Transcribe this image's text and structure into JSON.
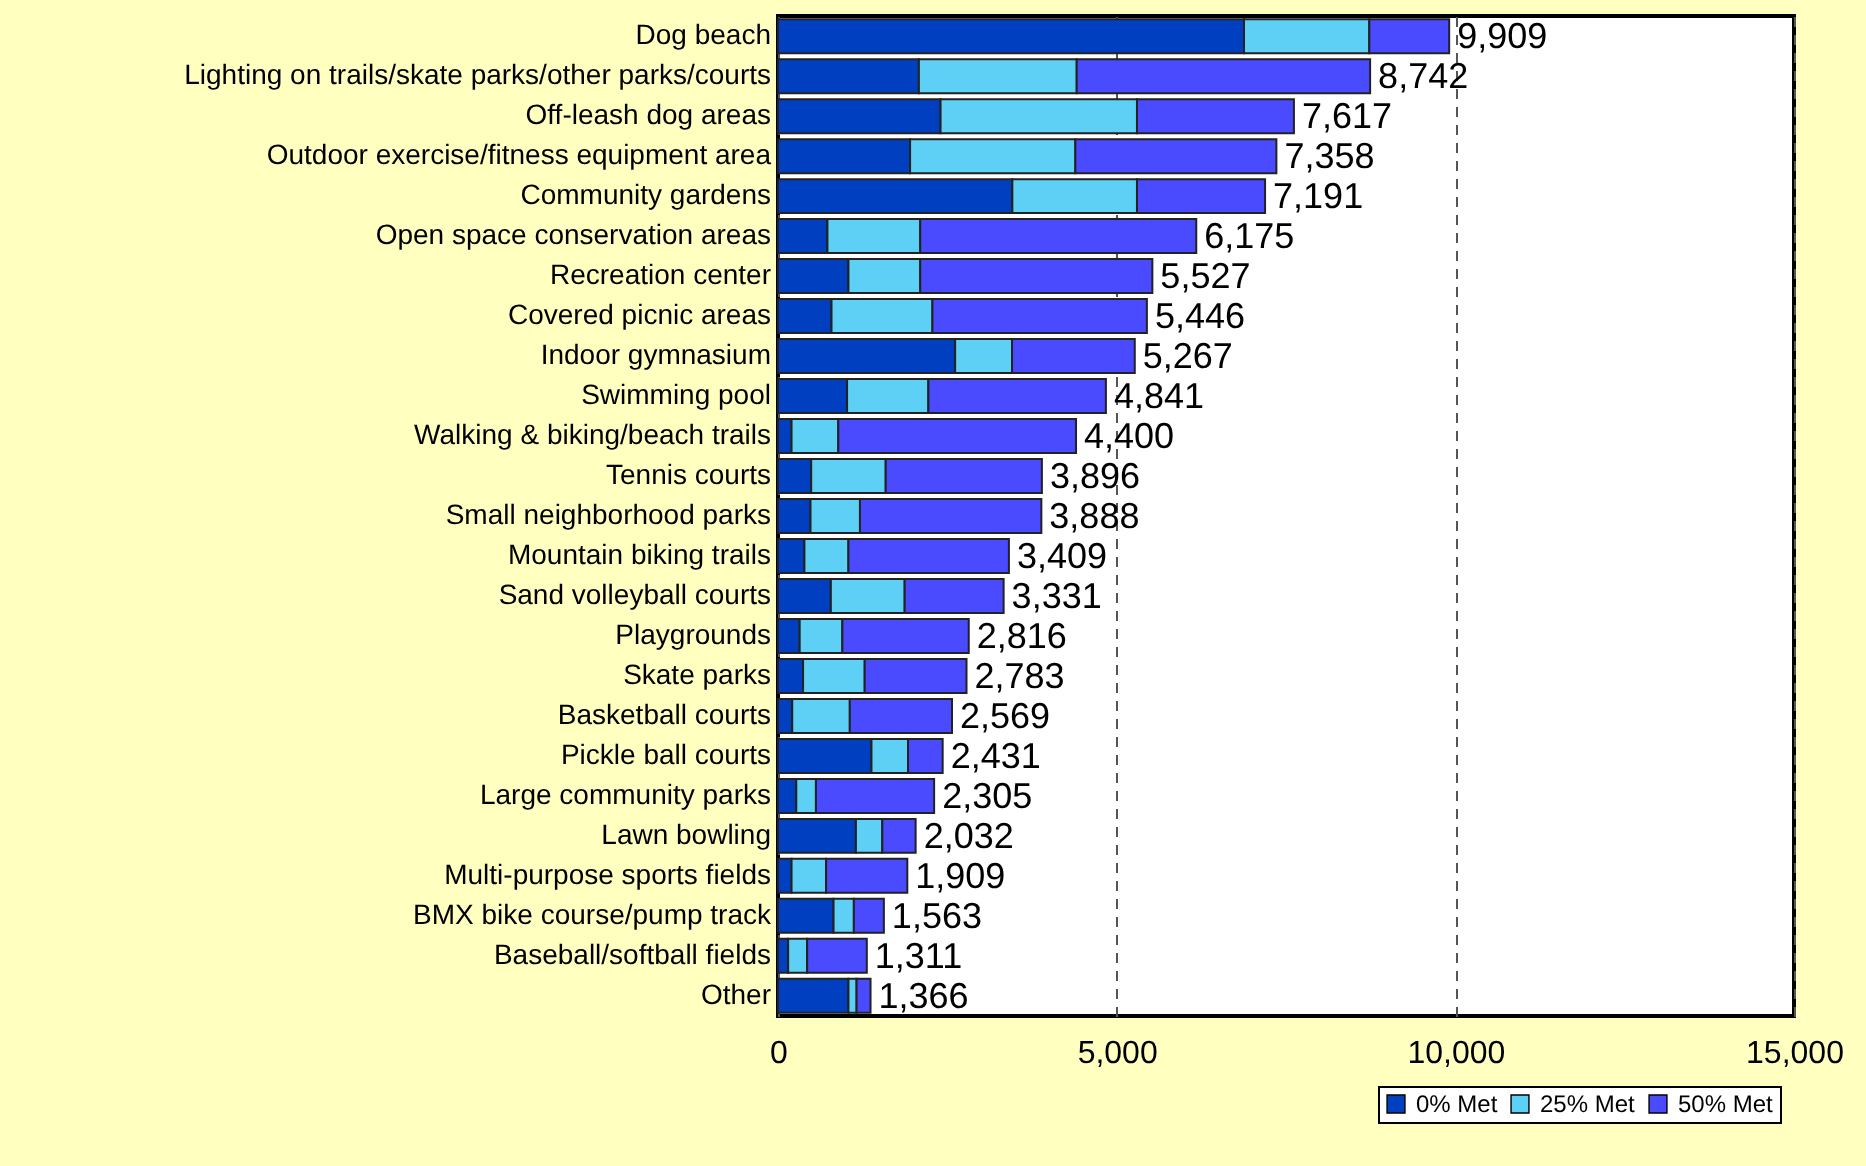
{
  "chart_data": {
    "type": "bar",
    "orientation": "horizontal",
    "stacked": true,
    "categories": [
      "Dog beach",
      "Lighting on trails/skate parks/other parks/courts",
      "Off-leash dog areas",
      "Outdoor exercise/fitness equipment area",
      "Community gardens",
      "Open space conservation areas",
      "Recreation center",
      "Covered picnic areas",
      "Indoor gymnasium",
      "Swimming pool",
      "Walking & biking/beach trails",
      "Tennis courts",
      "Small neighborhood parks",
      "Mountain biking trails",
      "Sand volleyball courts",
      "Playgrounds",
      "Skate parks",
      "Basketball courts",
      "Pickle ball courts",
      "Large community parks",
      "Lawn bowling",
      "Multi-purpose sports fields",
      "BMX bike course/pump track",
      "Baseball/softball fields",
      "Other"
    ],
    "series": [
      {
        "name": "0% Met",
        "color": "#0040c0",
        "values": [
          6880,
          2080,
          2400,
          1950,
          3460,
          730,
          1040,
          790,
          2615,
          1020,
          200,
          490,
          480,
          390,
          780,
          320,
          370,
          210,
          1380,
          270,
          1150,
          200,
          820,
          150,
          1040
        ]
      },
      {
        "name": "25% Met",
        "color": "#5fd0f5",
        "values": [
          1850,
          2330,
          2900,
          2440,
          1840,
          1370,
          1060,
          1490,
          840,
          1200,
          690,
          1100,
          730,
          650,
          1090,
          630,
          910,
          850,
          540,
          290,
          390,
          510,
          300,
          280,
          120
        ]
      },
      {
        "name": "50% Met",
        "color": "#4a4aff",
        "values": [
          1179,
          4332,
          2317,
          2968,
          1891,
          4075,
          3427,
          3166,
          1812,
          2621,
          3510,
          2306,
          2678,
          2369,
          1461,
          1866,
          1503,
          1509,
          511,
          1745,
          492,
          1199,
          443,
          881,
          206
        ]
      }
    ],
    "totals": [
      "9,909",
      "8,742",
      "7,617",
      "7,358",
      "7,191",
      "6,175",
      "5,527",
      "5,446",
      "5,267",
      "4,841",
      "4,400",
      "3,896",
      "3,888",
      "3,409",
      "3,331",
      "2,816",
      "2,783",
      "2,569",
      "2,431",
      "2,305",
      "2,032",
      "1,909",
      "1,563",
      "1,311",
      "1,366"
    ],
    "xlim": [
      0,
      15000
    ],
    "xticks": [
      0,
      {
        "value": 5000,
        "label": "5,000"
      },
      {
        "value": 10000,
        "label": "10,000"
      },
      {
        "value": 15000,
        "label": "15,000"
      }
    ],
    "grid": "x",
    "legend": "bottom right"
  }
}
